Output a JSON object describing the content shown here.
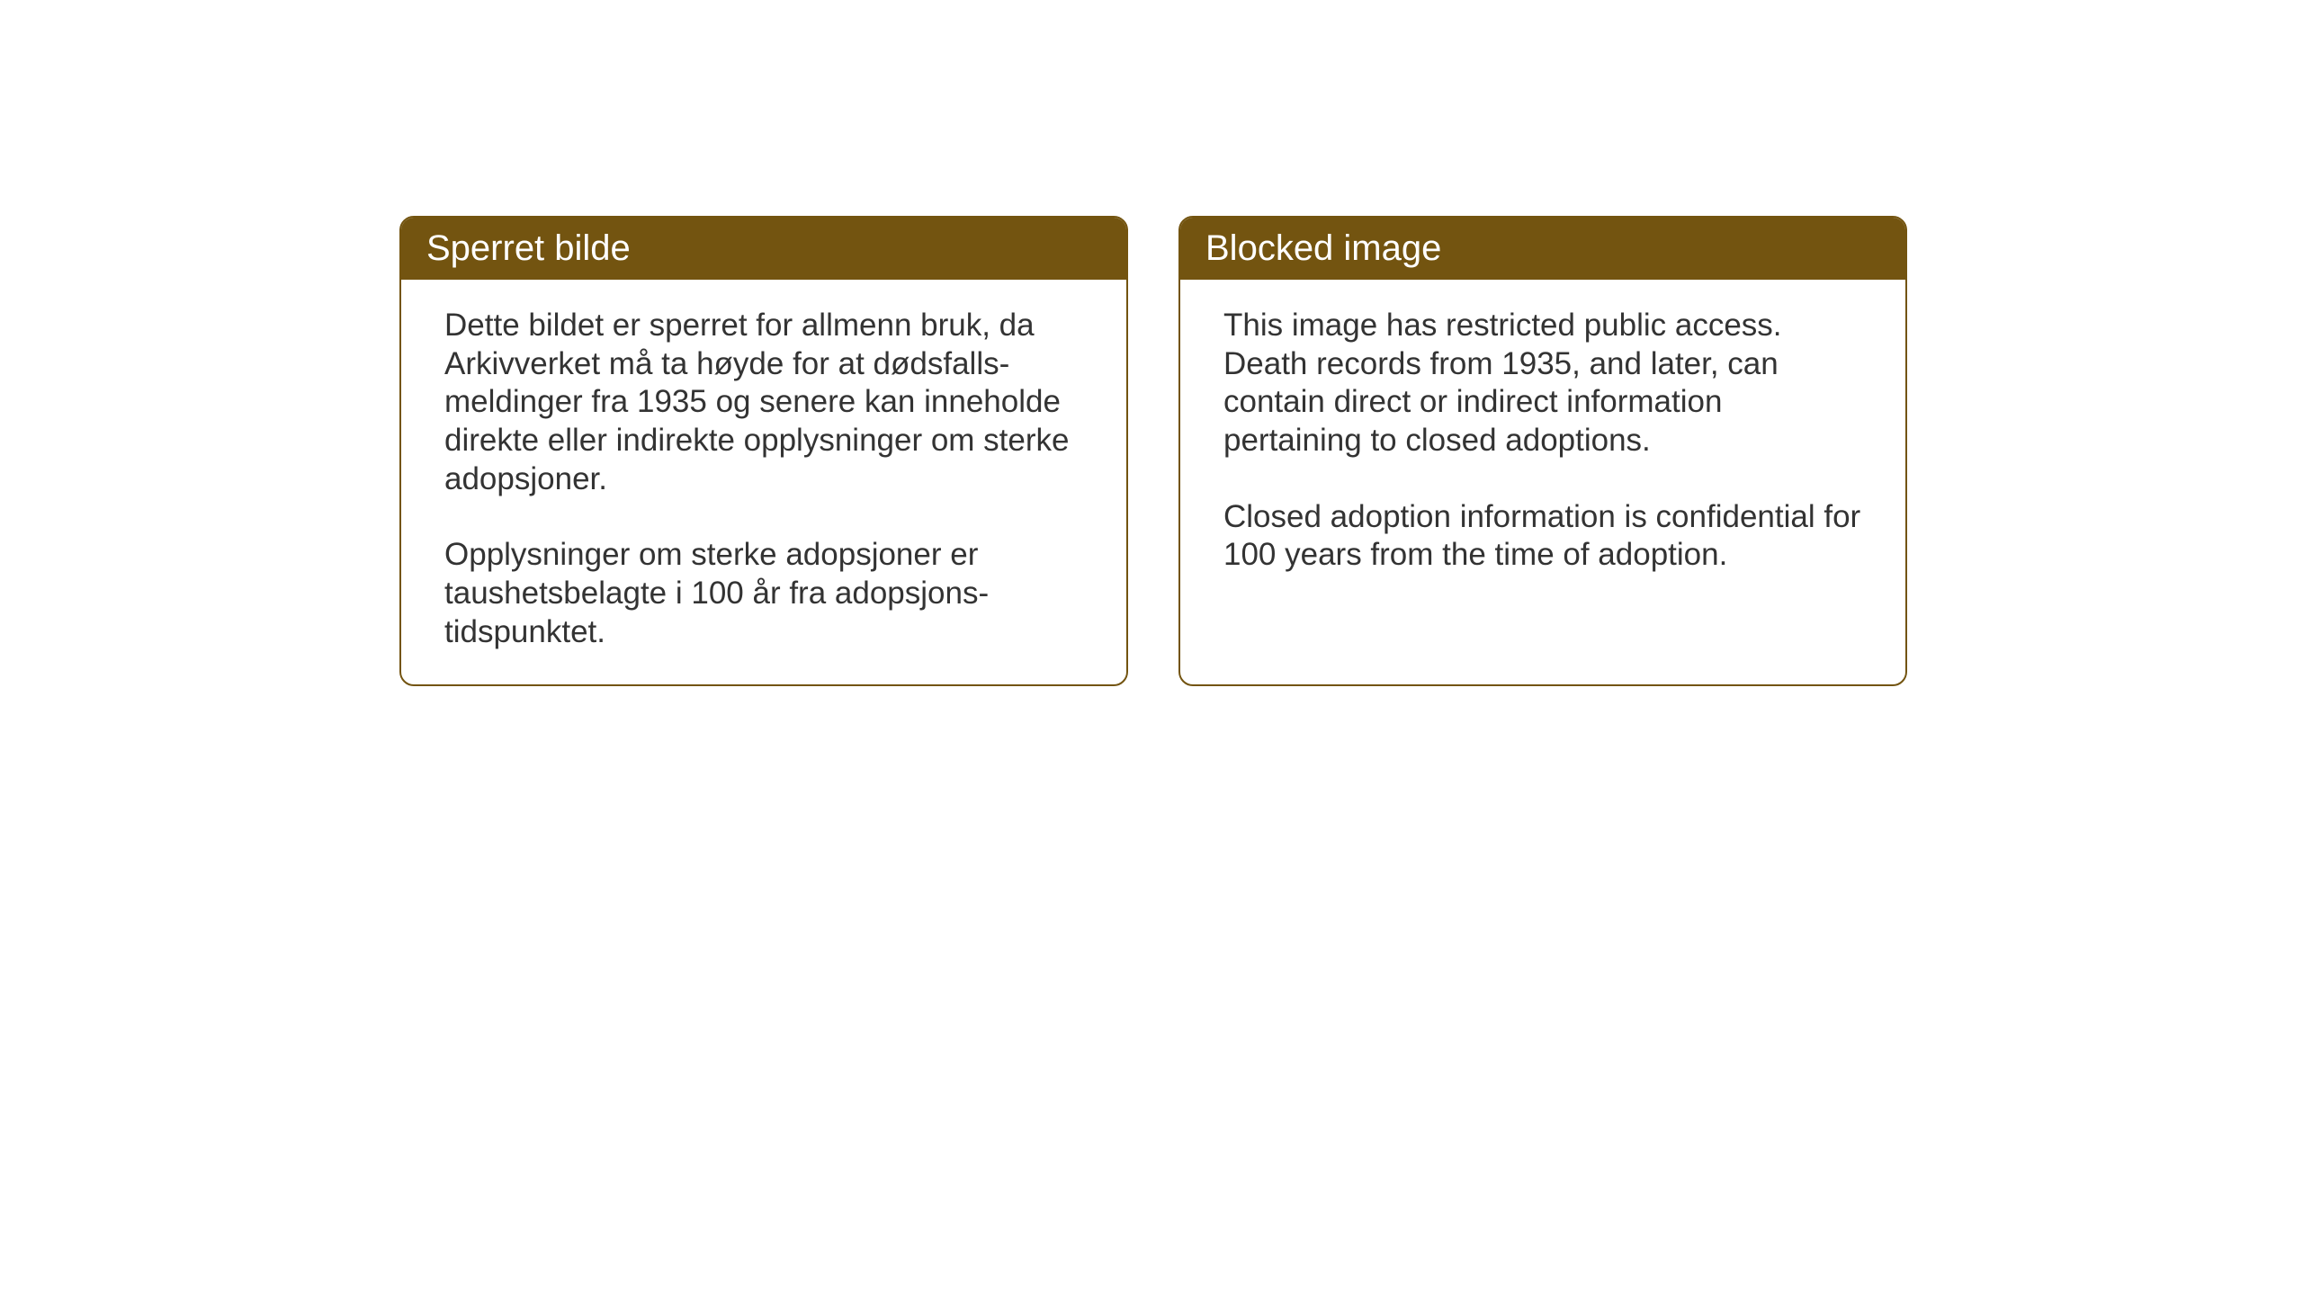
{
  "cards": {
    "norwegian": {
      "title": "Sperret bilde",
      "paragraph1": "Dette bildet er sperret for allmenn bruk, da Arkivverket må ta høyde for at dødsfalls-meldinger fra 1935 og senere kan inneholde direkte eller indirekte opplysninger om sterke adopsjoner.",
      "paragraph2": "Opplysninger om sterke adopsjoner er taushetsbelagte i 100 år fra adopsjons-tidspunktet."
    },
    "english": {
      "title": "Blocked image",
      "paragraph1": "This image has restricted public access. Death records from 1935, and later, can contain direct or indirect information pertaining to closed adoptions.",
      "paragraph2": "Closed adoption information is confidential for 100 years from the time of adoption."
    }
  },
  "styling": {
    "header_background": "#735410",
    "header_text_color": "#ffffff",
    "border_color": "#735410",
    "body_text_color": "#333333",
    "page_background": "#ffffff",
    "border_radius": 16,
    "header_fontsize": 40,
    "body_fontsize": 35
  }
}
